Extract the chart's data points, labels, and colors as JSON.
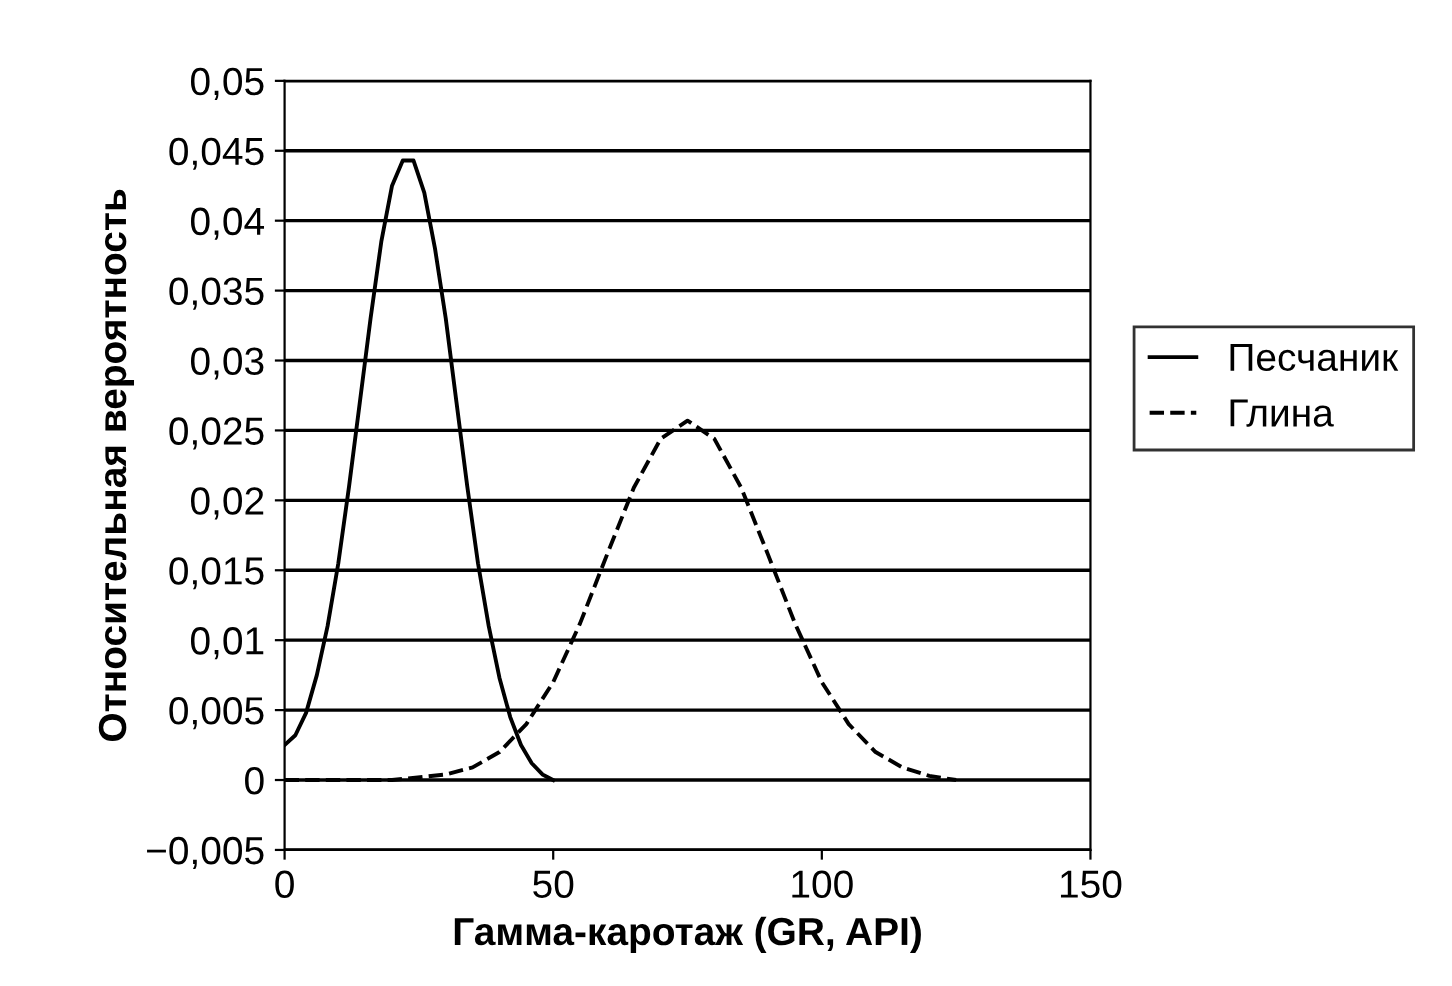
{
  "chart_data": {
    "type": "line",
    "xlabel": "Гамма-каротаж (GR, API)",
    "ylabel": "Относительная вероятность",
    "series": [
      {
        "name": "Песчаник",
        "color": "#000000",
        "line_style": "solid",
        "x": [
          0,
          2,
          4,
          6,
          8,
          10,
          12,
          14,
          16,
          18,
          20,
          22,
          24,
          26,
          28,
          30,
          32,
          34,
          36,
          38,
          40,
          42,
          44,
          46,
          48,
          50
        ],
        "values": [
          0.0025,
          0.0032,
          0.0048,
          0.0075,
          0.011,
          0.0155,
          0.021,
          0.027,
          0.033,
          0.0385,
          0.0425,
          0.0443,
          0.0443,
          0.042,
          0.038,
          0.033,
          0.027,
          0.021,
          0.0155,
          0.011,
          0.0073,
          0.0045,
          0.0025,
          0.0012,
          0.0004,
          0
        ]
      },
      {
        "name": "Глина",
        "color": "#000000",
        "line_style": "dashed",
        "x": [
          0,
          20,
          30,
          35,
          40,
          45,
          50,
          55,
          60,
          65,
          70,
          75,
          80,
          85,
          90,
          95,
          100,
          105,
          110,
          115,
          120,
          125
        ],
        "values": [
          0,
          0,
          0.0004,
          0.0009,
          0.002,
          0.004,
          0.007,
          0.0112,
          0.0161,
          0.0209,
          0.0244,
          0.0257,
          0.0244,
          0.0209,
          0.0161,
          0.0112,
          0.007,
          0.004,
          0.002,
          0.0009,
          0.0003,
          0
        ]
      }
    ],
    "xlim": [
      0,
      150
    ],
    "xticks": [
      0,
      50,
      100,
      150
    ],
    "ylim": [
      -0.005,
      0.05
    ],
    "yticks": [
      {
        "value": -0.005,
        "label": "−0,005"
      },
      {
        "value": 0,
        "label": "0"
      },
      {
        "value": 0.005,
        "label": "0,005"
      },
      {
        "value": 0.01,
        "label": "0,01"
      },
      {
        "value": 0.015,
        "label": "0,015"
      },
      {
        "value": 0.02,
        "label": "0,02"
      },
      {
        "value": 0.025,
        "label": "0,025"
      },
      {
        "value": 0.03,
        "label": "0,03"
      },
      {
        "value": 0.035,
        "label": "0,035"
      },
      {
        "value": 0.04,
        "label": "0,04"
      },
      {
        "value": 0.045,
        "label": "0,045"
      },
      {
        "value": 0.05,
        "label": "0,05"
      }
    ],
    "grid": "y",
    "legend": "right",
    "marker": "none"
  }
}
